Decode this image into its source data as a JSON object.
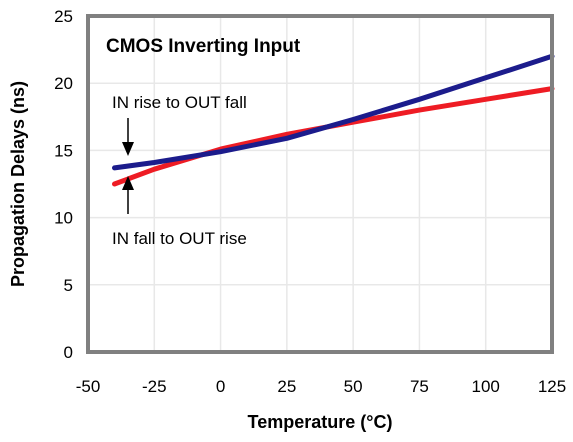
{
  "chart_data": {
    "type": "line",
    "title": "CMOS Inverting Input",
    "xlabel": "Temperature (°C)",
    "ylabel": "Propagation Delays (ns)",
    "xlim": [
      -50,
      125
    ],
    "ylim": [
      0,
      25
    ],
    "xticks": [
      -50,
      -25,
      0,
      25,
      50,
      75,
      100,
      125
    ],
    "xtick_labels": [
      "-50",
      "-25",
      "0",
      "25",
      "50",
      "75",
      "100",
      "125"
    ],
    "yticks": [
      0,
      5,
      10,
      15,
      20,
      25
    ],
    "ytick_labels": [
      "0",
      "5",
      "10",
      "15",
      "20",
      "25"
    ],
    "grid": true,
    "series": [
      {
        "name": "IN rise to OUT fall",
        "color": "#1c1c8c",
        "x": [
          -40,
          -25,
          0,
          25,
          50,
          75,
          100,
          125
        ],
        "y": [
          13.7,
          14.1,
          14.9,
          15.9,
          17.3,
          18.8,
          20.4,
          22.0
        ]
      },
      {
        "name": "IN fall to OUT rise",
        "color": "#ee1c24",
        "x": [
          -40,
          -25,
          0,
          25,
          50,
          75,
          100,
          125
        ],
        "y": [
          12.5,
          13.6,
          15.1,
          16.2,
          17.1,
          18.0,
          18.8,
          19.6
        ]
      }
    ],
    "annotations": {
      "upper": "IN rise to OUT fall",
      "lower": "IN fall to OUT rise"
    }
  }
}
